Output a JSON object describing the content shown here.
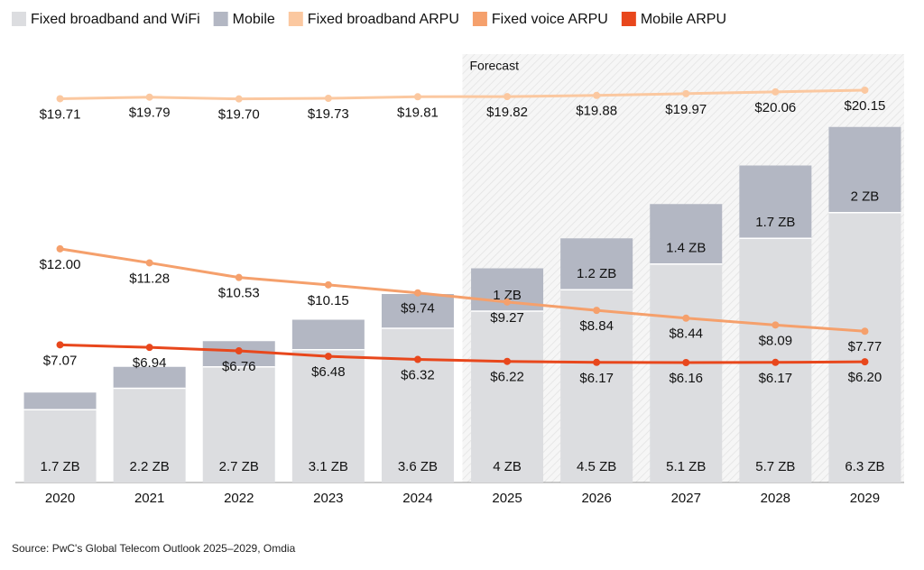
{
  "chart_data": {
    "type": "bar",
    "stacked": true,
    "source": "Source: PwC's Global Telecom Outlook 2025–2029, Omdia",
    "categories": [
      "2020",
      "2021",
      "2022",
      "2023",
      "2024",
      "2025",
      "2026",
      "2027",
      "2028",
      "2029"
    ],
    "forecast": {
      "label": "Forecast",
      "start": "2025"
    },
    "ylim": [
      0,
      10
    ],
    "y2lim": [
      0,
      22
    ],
    "legend": "top-left",
    "series": [
      {
        "name": "Fixed broadband and WiFi",
        "type": "bar",
        "color": "#dcdde0",
        "values": [
          1.7,
          2.2,
          2.7,
          3.1,
          3.6,
          4,
          4.5,
          5.1,
          5.7,
          6.3
        ],
        "value_labels": [
          "1.7 ZB",
          "2.2 ZB",
          "2.7 ZB",
          "3.1 ZB",
          "3.6 ZB",
          "4 ZB",
          "4.5 ZB",
          "5.1 ZB",
          "5.7 ZB",
          "6.3 ZB"
        ]
      },
      {
        "name": "Mobile",
        "type": "bar",
        "color": "#b3b7c3",
        "values": [
          0.4,
          0.5,
          0.6,
          0.7,
          0.8,
          1,
          1.2,
          1.4,
          1.7,
          2
        ],
        "value_labels": [
          null,
          null,
          null,
          null,
          null,
          "1 ZB",
          "1.2 ZB",
          "1.4 ZB",
          "1.7 ZB",
          "2 ZB"
        ]
      },
      {
        "name": "Fixed broadband ARPU",
        "type": "line",
        "axis": "y2",
        "color": "#fbc8a0",
        "values": [
          19.71,
          19.79,
          19.7,
          19.73,
          19.81,
          19.82,
          19.88,
          19.97,
          20.06,
          20.15
        ],
        "value_labels": [
          "$19.71",
          "$19.79",
          "$19.70",
          "$19.73",
          "$19.81",
          "$19.82",
          "$19.88",
          "$19.97",
          "$20.06",
          "$20.15"
        ]
      },
      {
        "name": "Fixed voice ARPU",
        "type": "line",
        "axis": "y2",
        "color": "#f5a06c",
        "values": [
          12.0,
          11.28,
          10.53,
          10.15,
          9.74,
          9.27,
          8.84,
          8.44,
          8.09,
          7.77
        ],
        "value_labels": [
          "$12.00",
          "$11.28",
          "$10.53",
          "$10.15",
          "$9.74",
          "$9.27",
          "$8.84",
          "$8.44",
          "$8.09",
          "$7.77"
        ]
      },
      {
        "name": "Mobile ARPU",
        "type": "line",
        "axis": "y2",
        "color": "#e8471c",
        "values": [
          7.07,
          6.94,
          6.76,
          6.48,
          6.32,
          6.22,
          6.17,
          6.16,
          6.17,
          6.2
        ],
        "value_labels": [
          "$7.07",
          "$6.94",
          "$6.76",
          "$6.48",
          "$6.32",
          "$6.22",
          "$6.17",
          "$6.16",
          "$6.17",
          "$6.20"
        ]
      }
    ]
  }
}
